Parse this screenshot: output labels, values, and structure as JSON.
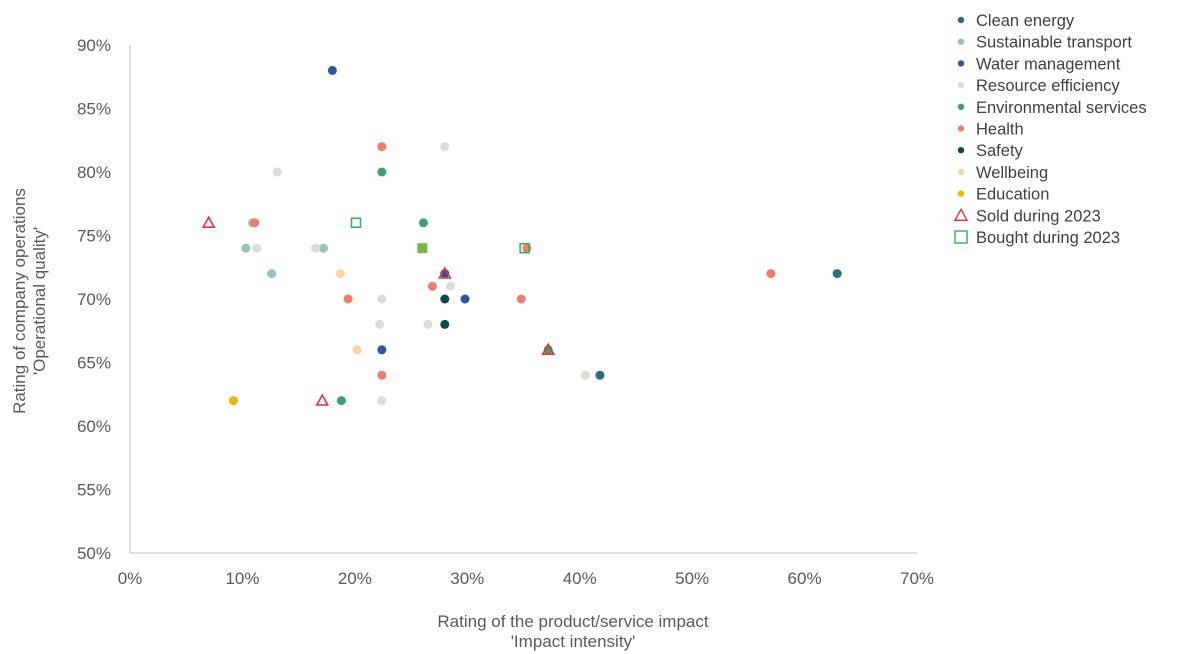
{
  "chart_data": {
    "type": "scatter",
    "title": "",
    "xlabel": [
      "Rating of the product/service impact",
      "'Impact intensity'"
    ],
    "ylabel": [
      "Rating of company operations",
      "'Operational quality'"
    ],
    "xlim": [
      0,
      70
    ],
    "ylim": [
      50,
      90
    ],
    "x_ticks": [
      0,
      10,
      20,
      30,
      40,
      50,
      60,
      70
    ],
    "y_ticks": [
      50,
      55,
      60,
      65,
      70,
      75,
      80,
      85,
      90
    ],
    "x_tick_labels": [
      "0%",
      "10%",
      "20%",
      "30%",
      "40%",
      "50%",
      "60%",
      "70%"
    ],
    "y_tick_labels": [
      "50%",
      "55%",
      "60%",
      "65%",
      "70%",
      "75%",
      "80%",
      "85%",
      "90%"
    ],
    "grid": false,
    "legend_position": "top-right",
    "series": [
      {
        "name": "Clean energy",
        "color": "#2a6b7c",
        "marker": "circle",
        "points": [
          [
            62.9,
            72
          ],
          [
            41.8,
            64
          ]
        ]
      },
      {
        "name": "Sustainable transport",
        "color": "#93c2c2",
        "marker": "circle",
        "points": [
          [
            10.3,
            74
          ],
          [
            10.9,
            76
          ],
          [
            12.6,
            72
          ],
          [
            17.2,
            74
          ]
        ]
      },
      {
        "name": "Water management",
        "color": "#2e55a0",
        "marker": "circle",
        "points": [
          [
            18,
            88
          ],
          [
            22.4,
            66
          ],
          [
            29.8,
            70
          ],
          [
            28,
            72
          ]
        ]
      },
      {
        "name": "Resource efficiency",
        "color": "#dcdcd6",
        "marker": "circle",
        "points": [
          [
            13.1,
            80
          ],
          [
            11.3,
            74
          ],
          [
            16.5,
            74
          ],
          [
            22.4,
            70
          ],
          [
            22.2,
            68
          ],
          [
            22.4,
            62
          ],
          [
            26.5,
            68
          ],
          [
            28.5,
            71
          ],
          [
            28,
            82
          ],
          [
            40.5,
            64
          ]
        ]
      },
      {
        "name": "Environmental services",
        "color": "#3aa56a",
        "marker": "circle",
        "points": [
          [
            22.4,
            80
          ],
          [
            26.1,
            76
          ],
          [
            18.8,
            62
          ],
          [
            37.2,
            66
          ]
        ]
      },
      {
        "name": "Health",
        "color": "#ee7d6b",
        "marker": "circle",
        "points": [
          [
            22.4,
            82
          ],
          [
            19.4,
            70
          ],
          [
            26.9,
            71
          ],
          [
            22.4,
            64
          ],
          [
            34.8,
            70
          ],
          [
            35.3,
            74
          ],
          [
            57,
            72
          ],
          [
            11.1,
            76
          ]
        ]
      },
      {
        "name": "Safety",
        "color": "#0c4a4a",
        "marker": "circle",
        "points": [
          [
            28,
            70
          ],
          [
            28,
            68
          ]
        ]
      },
      {
        "name": "Wellbeing",
        "color": "#fcd3a2",
        "marker": "circle",
        "points": [
          [
            18.7,
            72
          ],
          [
            20.2,
            66
          ]
        ]
      },
      {
        "name": "Education",
        "color": "#f2b400",
        "marker": "circle",
        "points": [
          [
            9.2,
            62
          ]
        ]
      },
      {
        "name": "Sold during 2023",
        "color": "#e8303a",
        "marker": "triangle",
        "points": [
          [
            7,
            76
          ],
          [
            17.1,
            62
          ],
          [
            28,
            72
          ],
          [
            37.2,
            66
          ]
        ]
      },
      {
        "name": "Bought during 2023",
        "color": "#2fb24c",
        "marker": "square",
        "points": [
          [
            20.1,
            76
          ],
          [
            35.1,
            74
          ]
        ]
      }
    ],
    "extra_markers": [
      {
        "series": "Bought during 2023",
        "style": "filled",
        "fill": "#7ab648",
        "x": 26,
        "y": 74
      }
    ]
  }
}
